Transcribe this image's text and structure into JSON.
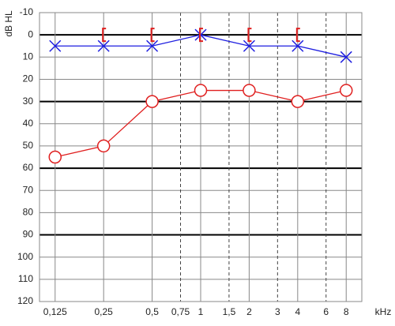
{
  "chart_data": {
    "type": "audiogram",
    "y_label": "dB HL",
    "x_label": "kHz",
    "x": [
      0.125,
      0.25,
      0.5,
      1,
      2,
      4,
      8
    ],
    "series": [
      {
        "color": "#1f1fe0",
        "marker": "x",
        "line": true,
        "values": [
          5,
          5,
          5,
          0,
          5,
          5,
          10
        ]
      },
      {
        "color": "#e01f1f",
        "marker": "o",
        "line": true,
        "values": [
          55,
          50,
          30,
          25,
          25,
          30,
          25
        ]
      },
      {
        "color": "#e01f1f",
        "marker": "bracket",
        "line": false,
        "values": [
          null,
          0,
          0,
          0,
          0,
          0,
          null
        ]
      }
    ],
    "xscale": "log",
    "xlim": [
      0.1,
      10
    ],
    "xticks": [
      {
        "value": 0.125,
        "label": "0,125"
      },
      {
        "value": 0.25,
        "label": "0,25"
      },
      {
        "value": 0.5,
        "label": "0,5"
      },
      {
        "value": 0.75,
        "label": "0,75"
      },
      1,
      {
        "value": 1.5,
        "label": "1,5"
      },
      2,
      3,
      4,
      6,
      8
    ],
    "dashed_xticks": [
      0.75,
      1.5,
      3,
      6
    ],
    "ylim": [
      120,
      -10
    ],
    "yticks": [
      -10,
      0,
      10,
      20,
      30,
      40,
      50,
      60,
      70,
      80,
      90,
      100,
      110,
      120
    ],
    "thick_yticks": [
      0,
      30,
      60,
      90
    ],
    "grid": true
  }
}
